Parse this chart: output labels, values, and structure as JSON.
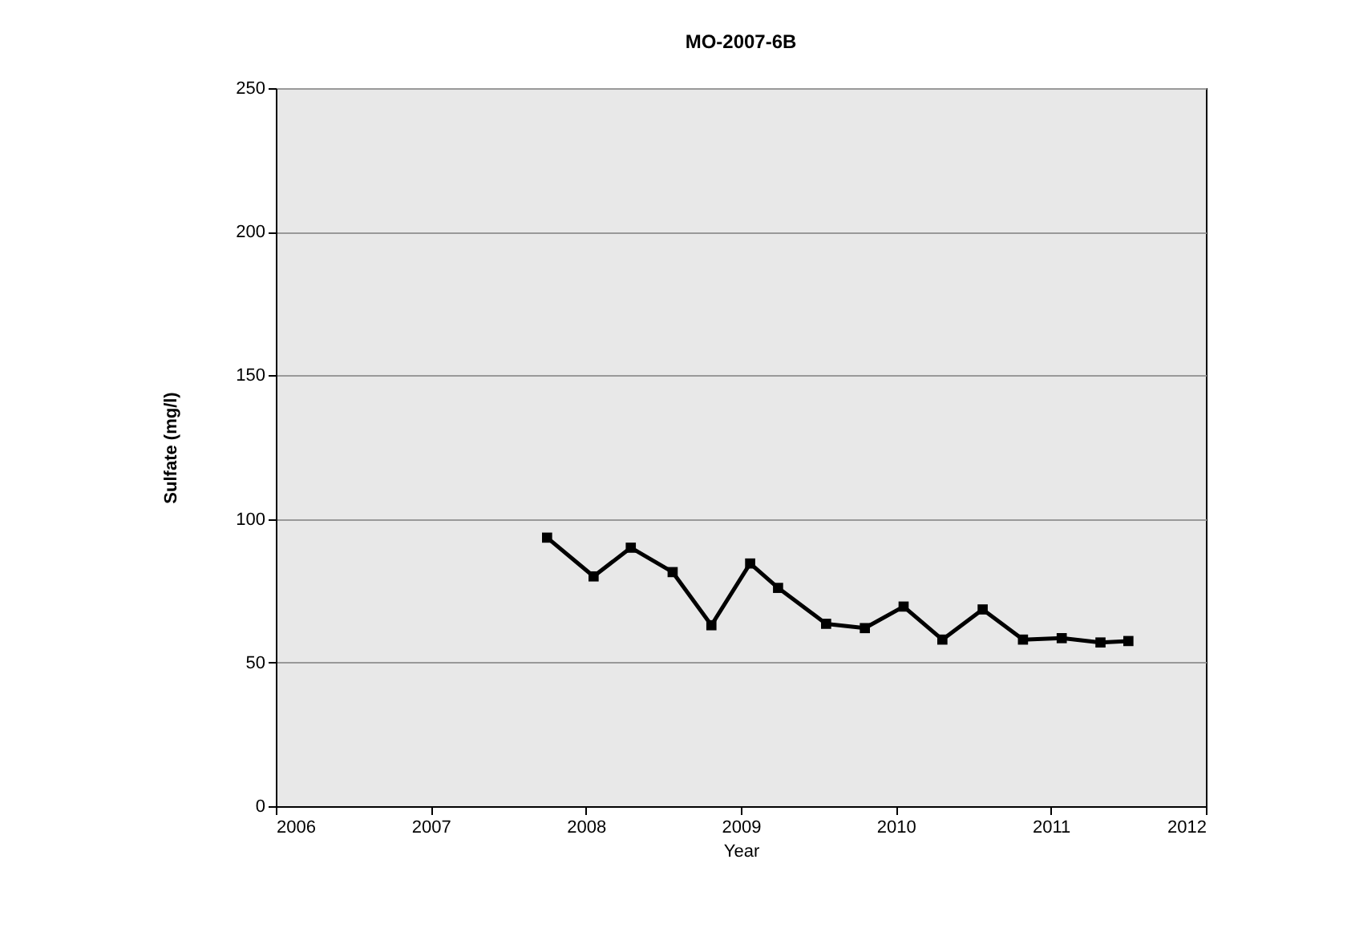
{
  "chart_data": {
    "type": "line",
    "title": "MO-2007-6B",
    "xlabel": "Year",
    "ylabel": "Sulfate (mg/l)",
    "x": [
      2007.75,
      2008.05,
      2008.29,
      2008.56,
      2008.81,
      2009.06,
      2009.24,
      2009.55,
      2009.8,
      2010.05,
      2010.3,
      2010.56,
      2010.82,
      2011.07,
      2011.32,
      2011.5
    ],
    "series": [
      {
        "color": "#000000",
        "values": [
          93.5,
          80,
          90,
          81.5,
          63,
          84.5,
          76,
          63.5,
          62,
          69.5,
          58,
          68.5,
          58,
          58.5,
          57,
          57.5
        ]
      }
    ],
    "xlim": [
      2006,
      2012
    ],
    "xticks": [
      2006,
      2007,
      2008,
      2009,
      2010,
      2011,
      2012
    ],
    "ylim": [
      0,
      250
    ],
    "yticks": [
      0,
      50,
      100,
      150,
      200,
      250
    ],
    "grid": "y",
    "marker": "square",
    "line_style": "solid"
  }
}
